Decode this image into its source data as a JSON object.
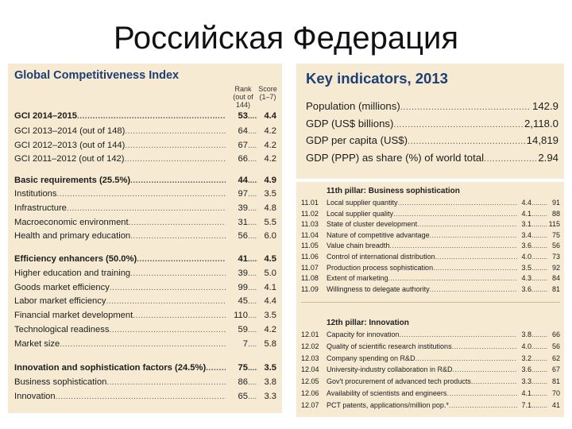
{
  "slide_title": "Российская Федерация",
  "gci_panel": {
    "title": "Global Competitiveness Index",
    "rank_header": "Rank\n(out of 144)",
    "score_header": "Score\n(1–7)",
    "rows": [
      {
        "label": "GCI 2014–2015",
        "rank": "53",
        "score": "4.4",
        "bold": true
      },
      {
        "label": "GCI 2013–2014 (out of 148)",
        "rank": "64",
        "score": "4.2",
        "bold": false
      },
      {
        "label": "GCI 2012–2013 (out of 144)",
        "rank": "67",
        "score": "4.2",
        "bold": false
      },
      {
        "label": "GCI 2011–2012 (out of 142)",
        "rank": "66",
        "score": "4.2",
        "bold": false
      },
      {
        "label": "Basic requirements (25.5%)",
        "rank": "44",
        "score": "4.9",
        "bold": true
      },
      {
        "label": "Institutions",
        "rank": "97",
        "score": "3.5",
        "bold": false
      },
      {
        "label": "Infrastructure",
        "rank": "39",
        "score": "4.8",
        "bold": false
      },
      {
        "label": "Macroeconomic environment",
        "rank": "31",
        "score": "5.5",
        "bold": false
      },
      {
        "label": "Health and primary education",
        "rank": "56",
        "score": "6.0",
        "bold": false
      },
      {
        "label": "Efficiency enhancers (50.0%)",
        "rank": "41",
        "score": "4.5",
        "bold": true
      },
      {
        "label": "Higher education and training",
        "rank": "39",
        "score": "5.0",
        "bold": false
      },
      {
        "label": "Goods market efficiency",
        "rank": "99",
        "score": "4.1",
        "bold": false
      },
      {
        "label": "Labor market efficiency",
        "rank": "45",
        "score": "4.4",
        "bold": false
      },
      {
        "label": "Financial market development",
        "rank": "110",
        "score": "3.5",
        "bold": false
      },
      {
        "label": "Technological readiness",
        "rank": "59",
        "score": "4.2",
        "bold": false
      },
      {
        "label": "Market size",
        "rank": "7",
        "score": "5.8",
        "bold": false
      },
      {
        "label": "Innovation and sophistication factors (24.5%)",
        "rank": "75",
        "score": "3.5",
        "bold": true
      },
      {
        "label": "Business sophistication",
        "rank": "86",
        "score": "3.8",
        "bold": false
      },
      {
        "label": "Innovation",
        "rank": "65",
        "score": "3.3",
        "bold": false
      }
    ]
  },
  "key_indicators": {
    "title": "Key indicators, 2013",
    "rows": [
      {
        "label": "Population (millions)",
        "value": "142.9"
      },
      {
        "label": "GDP (US$ billions)",
        "value": "2,118.0"
      },
      {
        "label": "GDP per capita (US$)",
        "value": "14,819"
      },
      {
        "label": "GDP (PPP) as share (%) of world total",
        "value": "2.94"
      }
    ]
  },
  "pillar11": {
    "title": "11th pillar: Business sophistication",
    "rows": [
      {
        "code": "11.01",
        "label": "Local supplier quantity",
        "score": "4.4",
        "rank": "91"
      },
      {
        "code": "11.02",
        "label": "Local supplier quality",
        "score": "4.1",
        "rank": "88"
      },
      {
        "code": "11.03",
        "label": "State of cluster development",
        "score": "3.1",
        "rank": "115"
      },
      {
        "code": "11.04",
        "label": "Nature of competitive advantage",
        "score": "3.4",
        "rank": "75"
      },
      {
        "code": "11.05",
        "label": "Value chain breadth",
        "score": "3.6",
        "rank": "56"
      },
      {
        "code": "11.06",
        "label": "Control of international distribution",
        "score": "4.0",
        "rank": "73"
      },
      {
        "code": "11.07",
        "label": "Production process sophistication",
        "score": "3.5",
        "rank": "92"
      },
      {
        "code": "11.08",
        "label": "Extent of marketing",
        "score": "4.3",
        "rank": "84"
      },
      {
        "code": "11.09",
        "label": "Willingness to delegate authority",
        "score": "3.6",
        "rank": "81"
      }
    ]
  },
  "pillar12": {
    "title": "12th pillar: Innovation",
    "rows": [
      {
        "code": "12.01",
        "label": "Capacity for innovation",
        "score": "3.8",
        "rank": "66"
      },
      {
        "code": "12.02",
        "label": "Quality of scientific research institutions",
        "score": "4.0",
        "rank": "56"
      },
      {
        "code": "12.03",
        "label": "Company spending on R&D",
        "score": "3.2",
        "rank": "62"
      },
      {
        "code": "12.04",
        "label": "University-industry collaboration in R&D",
        "score": "3.6",
        "rank": "67"
      },
      {
        "code": "12.05",
        "label": "Gov't procurement of advanced tech products",
        "score": "3.3",
        "rank": "81"
      },
      {
        "code": "12.06",
        "label": "Availability of scientists and engineers",
        "score": "4.1",
        "rank": "70"
      },
      {
        "code": "12.07",
        "label": "PCT patents, applications/million pop.*",
        "score": "7.1",
        "rank": "41"
      }
    ]
  }
}
